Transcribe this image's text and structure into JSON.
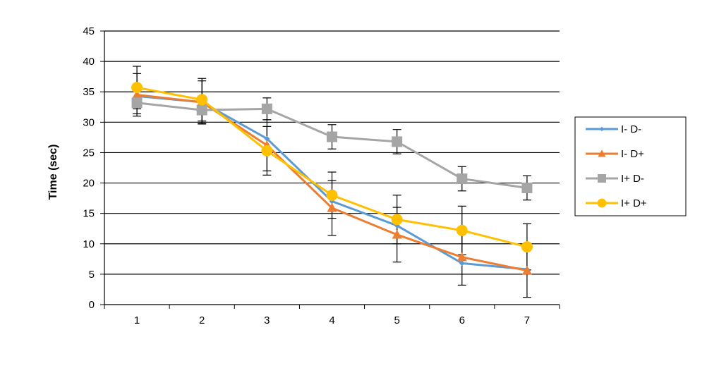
{
  "chart_data": {
    "type": "line",
    "title": "",
    "xlabel": "",
    "ylabel": "Time (sec)",
    "x": [
      1,
      2,
      3,
      4,
      5,
      6,
      7
    ],
    "ylim": [
      0,
      45
    ],
    "yticks": [
      0,
      5,
      10,
      15,
      20,
      25,
      30,
      35,
      40,
      45
    ],
    "grid": "horizontal",
    "legend_position": "right",
    "series": [
      {
        "name": "I- D-",
        "color": "#5B9BD5",
        "marker": "diamond",
        "values": [
          34.3,
          33.3,
          27.3,
          17.0,
          13.0,
          6.8,
          5.8
        ]
      },
      {
        "name": "I- D+",
        "color": "#ED7D31",
        "marker": "triangle",
        "values": [
          34.5,
          33.3,
          26.2,
          15.9,
          11.5,
          7.8,
          5.6
        ],
        "error": [
          3.5,
          3.5,
          4.2,
          4.5,
          4.5,
          4.6,
          4.4
        ]
      },
      {
        "name": "I+ D-",
        "color": "#A5A5A5",
        "marker": "square",
        "values": [
          33.2,
          32.0,
          32.2,
          27.6,
          26.8,
          20.7,
          19.2
        ],
        "error": [
          1.8,
          2.3,
          1.8,
          2.0,
          2.0,
          2.0,
          2.0
        ]
      },
      {
        "name": "I+ D+",
        "color": "#FFC000",
        "marker": "circle",
        "values": [
          35.7,
          33.7,
          25.3,
          18.0,
          14.0,
          12.2,
          9.5
        ],
        "error": [
          3.5,
          3.5,
          4.0,
          3.8,
          4.0,
          4.0,
          3.8
        ]
      }
    ]
  }
}
